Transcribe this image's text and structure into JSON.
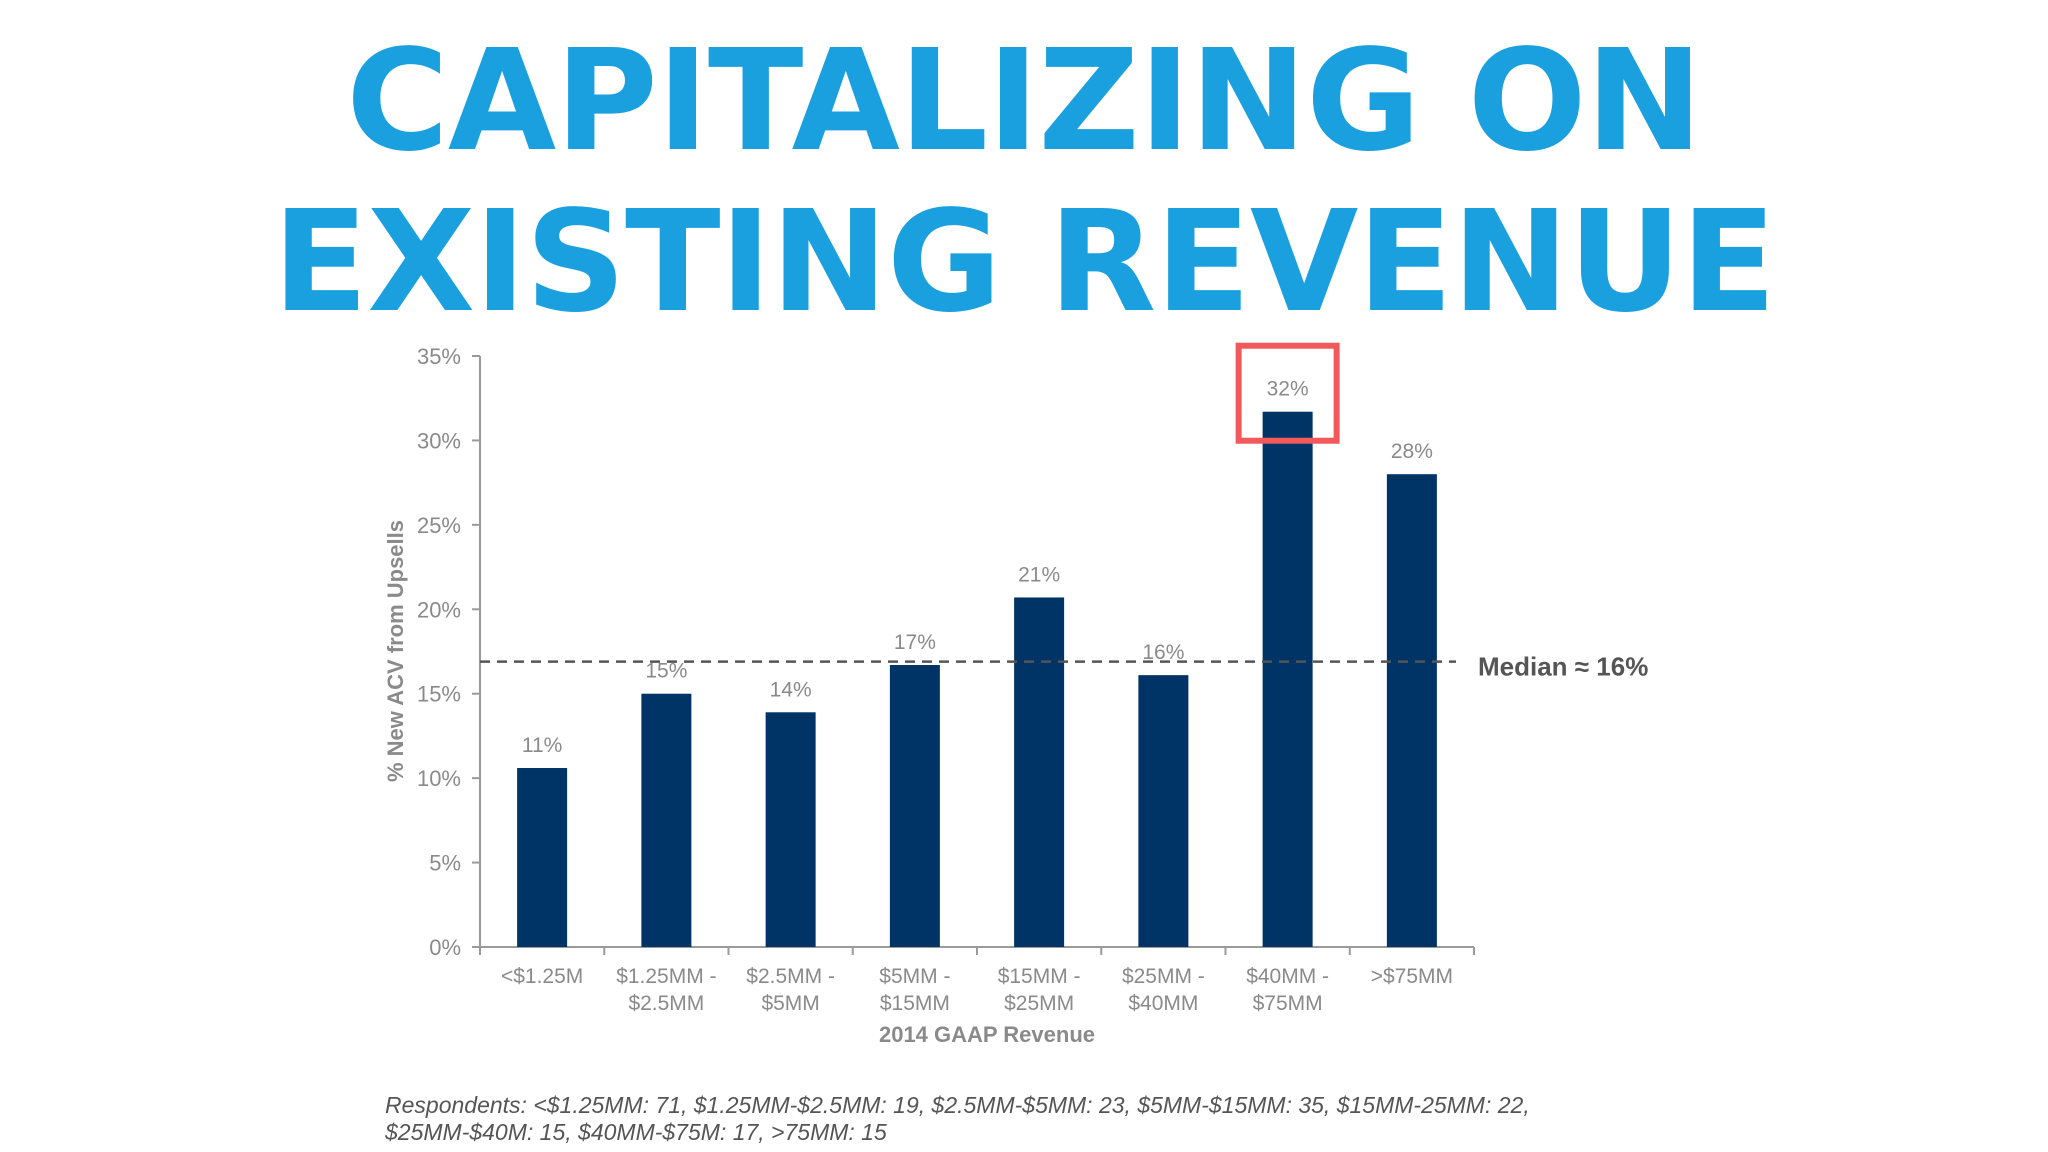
{
  "title": {
    "line1": "CAPITALIZING ON",
    "line2": "EXISTING REVENUE",
    "color": "#1ba0df"
  },
  "chart_data": {
    "type": "bar",
    "xlabel": "2014 GAAP Revenue",
    "ylabel": "% New ACV from Upsells",
    "ylim": [
      0,
      35
    ],
    "yticks": [
      "0%",
      "5%",
      "10%",
      "15%",
      "20%",
      "25%",
      "30%",
      "35%"
    ],
    "categories": [
      [
        "<$1.25M"
      ],
      [
        "$1.25MM -",
        "$2.5MM"
      ],
      [
        "$2.5MM -",
        "$5MM"
      ],
      [
        "$5MM -",
        "$15MM"
      ],
      [
        "$15MM -",
        "$25MM"
      ],
      [
        "$25MM -",
        "$40MM"
      ],
      [
        "$40MM -",
        "$75MM"
      ],
      [
        ">$75MM"
      ]
    ],
    "values": [
      10.6,
      15,
      13.9,
      16.7,
      20.7,
      16.1,
      31.7,
      28
    ],
    "data_labels": [
      "11%",
      "15%",
      "14%",
      "17%",
      "21%",
      "16%",
      "32%",
      "28%"
    ],
    "bar_color": "#003366",
    "reference_line": {
      "value": 16.9,
      "label": "Median ≈ 16%",
      "style": "dashed"
    },
    "highlight": {
      "index": 6,
      "color": "#f05a5a"
    },
    "grid": false
  },
  "footnote": "Respondents: <$1.25MM: 71, $1.25MM-$2.5MM: 19, $2.5MM-$5MM: 23, $5MM-$15MM: 35, $15MM-25MM: 22, $25MM-$40M: 15, $40MM-$75M: 17, >75MM: 15"
}
